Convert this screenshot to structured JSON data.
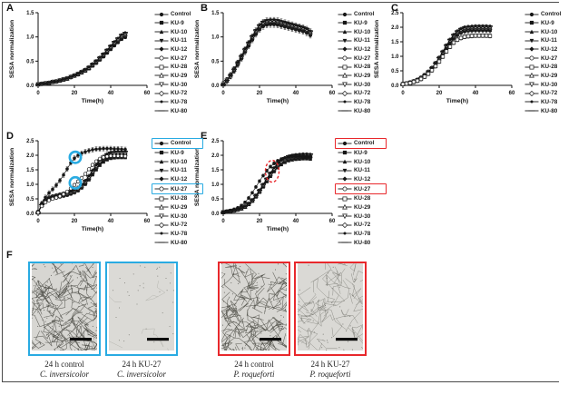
{
  "panel_letters": [
    "A",
    "B",
    "C",
    "D",
    "E",
    "F"
  ],
  "legend_labels": [
    "Control",
    "KU-9",
    "KU-10",
    "KU-11",
    "KU-12",
    "KU-27",
    "KU-28",
    "KU-29",
    "KU-30",
    "KU-72",
    "KU-78",
    "KU-80"
  ],
  "legend_markers": [
    "filled-circle",
    "filled-square",
    "filled-triangle-up",
    "filled-triangle-down",
    "filled-diamond",
    "open-circle",
    "open-square",
    "open-triangle-up",
    "open-triangle-down",
    "open-diamond",
    "filled-small-circle",
    "dash"
  ],
  "colors": {
    "series": "#161616",
    "axis": "#111111",
    "highlight_cyan": "#29abe2",
    "highlight_red": "#e8282c"
  },
  "chart_data": [
    {
      "panel": "A",
      "type": "line",
      "xlabel": "Time(h)",
      "ylabel": "SESA normalization",
      "xlim": [
        0,
        60
      ],
      "ylim": [
        0,
        1.5
      ],
      "xtick_values": [
        0,
        20,
        40,
        60
      ],
      "xtick_labels": [
        "0",
        "20",
        "40",
        "60"
      ],
      "ytick_values": [
        0,
        0.5,
        1.0,
        1.5
      ],
      "ytick_labels": [
        "0.0",
        "0.5",
        "1.0",
        "1.5"
      ],
      "x": [
        0,
        2,
        4,
        6,
        8,
        10,
        12,
        14,
        16,
        18,
        20,
        22,
        24,
        26,
        28,
        30,
        32,
        34,
        36,
        38,
        40,
        42,
        44,
        46,
        48
      ],
      "band_values": [
        0.02,
        0.03,
        0.04,
        0.05,
        0.07,
        0.08,
        0.1,
        0.12,
        0.14,
        0.17,
        0.2,
        0.23,
        0.27,
        0.31,
        0.36,
        0.42,
        0.48,
        0.55,
        0.62,
        0.7,
        0.78,
        0.86,
        0.93,
        1.0,
        1.04
      ],
      "band_spread": 0.05,
      "error_bar": 0.02,
      "series_special": {},
      "annotations": [],
      "legend_boxed": [],
      "legend_box_color": null
    },
    {
      "panel": "B",
      "type": "line",
      "xlabel": "Time(h)",
      "ylabel": "SESA normalization",
      "xlim": [
        0,
        60
      ],
      "ylim": [
        0,
        1.5
      ],
      "xtick_values": [
        0,
        20,
        40,
        60
      ],
      "xtick_labels": [
        "0",
        "20",
        "40",
        "60"
      ],
      "ytick_values": [
        0,
        0.5,
        1.0,
        1.5
      ],
      "ytick_labels": [
        "0.0",
        "0.5",
        "1.0",
        "1.5"
      ],
      "x": [
        0,
        2,
        4,
        6,
        8,
        10,
        12,
        14,
        16,
        18,
        20,
        22,
        24,
        26,
        28,
        30,
        32,
        34,
        36,
        38,
        40,
        42,
        44,
        46,
        48
      ],
      "band_values": [
        0.02,
        0.1,
        0.2,
        0.32,
        0.45,
        0.58,
        0.72,
        0.85,
        0.98,
        1.1,
        1.2,
        1.27,
        1.3,
        1.31,
        1.31,
        1.3,
        1.28,
        1.26,
        1.24,
        1.22,
        1.2,
        1.18,
        1.16,
        1.13,
        1.08
      ],
      "band_spread": 0.04,
      "error_bar": 0.06,
      "series_special": {},
      "annotations": [],
      "legend_boxed": [],
      "legend_box_color": null
    },
    {
      "panel": "C",
      "type": "line",
      "xlabel": "Time(h)",
      "ylabel": "SESA normalization",
      "xlim": [
        0,
        60
      ],
      "ylim": [
        0,
        2.5
      ],
      "xtick_values": [
        0,
        20,
        40,
        60
      ],
      "xtick_labels": [
        "0",
        "20",
        "40",
        "60"
      ],
      "ytick_values": [
        0,
        0.5,
        1.0,
        1.5,
        2.0,
        2.5
      ],
      "ytick_labels": [
        "0.0",
        "0.5",
        "1.0",
        "1.5",
        "2.0",
        "2.5"
      ],
      "x": [
        0,
        2,
        4,
        6,
        8,
        10,
        12,
        14,
        16,
        18,
        20,
        22,
        24,
        26,
        28,
        30,
        32,
        34,
        36,
        38,
        40,
        42,
        44,
        46,
        48
      ],
      "band_values": [
        0.04,
        0.06,
        0.09,
        0.13,
        0.18,
        0.25,
        0.34,
        0.45,
        0.58,
        0.74,
        0.92,
        1.12,
        1.33,
        1.52,
        1.68,
        1.8,
        1.88,
        1.93,
        1.95,
        1.96,
        1.97,
        1.97,
        1.97,
        1.97,
        1.96
      ],
      "band_spread": 0.04,
      "error_bar": 0.07,
      "series_special": {
        "KU-28": [
          0.04,
          0.06,
          0.08,
          0.12,
          0.16,
          0.22,
          0.3,
          0.4,
          0.52,
          0.66,
          0.82,
          0.99,
          1.17,
          1.33,
          1.47,
          1.57,
          1.63,
          1.67,
          1.69,
          1.7,
          1.71,
          1.71,
          1.71,
          1.71,
          1.7
        ]
      },
      "annotations": [],
      "legend_boxed": [],
      "legend_box_color": null
    },
    {
      "panel": "D",
      "type": "line",
      "xlabel": "Time(h)",
      "ylabel": "SESA normalization",
      "xlim": [
        0,
        60
      ],
      "ylim": [
        0,
        2.5
      ],
      "xtick_values": [
        0,
        20,
        40,
        60
      ],
      "xtick_labels": [
        "0",
        "20",
        "40",
        "60"
      ],
      "ytick_values": [
        0,
        0.5,
        1.0,
        1.5,
        2.0,
        2.5
      ],
      "ytick_labels": [
        "0.0",
        "0.5",
        "1.0",
        "1.5",
        "2.0",
        "2.5"
      ],
      "x": [
        0,
        2,
        4,
        6,
        8,
        10,
        12,
        14,
        16,
        18,
        20,
        22,
        24,
        26,
        28,
        30,
        32,
        34,
        36,
        38,
        40,
        42,
        44,
        46,
        48
      ],
      "band_values": [
        0.03,
        0.28,
        0.42,
        0.5,
        0.55,
        0.58,
        0.61,
        0.64,
        0.67,
        0.71,
        0.76,
        0.83,
        0.93,
        1.06,
        1.22,
        1.4,
        1.58,
        1.74,
        1.86,
        1.94,
        1.99,
        2.01,
        2.02,
        2.02,
        2.02
      ],
      "band_spread": 0.06,
      "error_bar": 0.08,
      "series_special": {
        "Control": [
          0.03,
          0.35,
          0.55,
          0.7,
          0.83,
          0.97,
          1.13,
          1.32,
          1.53,
          1.74,
          1.9,
          2.0,
          2.07,
          2.12,
          2.16,
          2.19,
          2.21,
          2.22,
          2.23,
          2.23,
          2.23,
          2.22,
          2.22,
          2.21,
          2.2
        ],
        "KU-27": [
          0.03,
          0.25,
          0.38,
          0.45,
          0.5,
          0.54,
          0.59,
          0.66,
          0.75,
          0.86,
          0.98,
          1.1,
          1.22,
          1.36,
          1.52,
          1.67,
          1.79,
          1.88,
          1.93,
          1.96,
          1.98,
          1.98,
          1.98,
          1.98,
          1.97
        ]
      },
      "annotations": [
        {
          "type": "ring",
          "x": 20.5,
          "y": 1.93,
          "r": 6.2,
          "color": "#29abe2"
        },
        {
          "type": "ring",
          "x": 20.5,
          "y": 1.05,
          "r": 6.2,
          "color": "#29abe2"
        }
      ],
      "legend_boxed": [
        "Control",
        "KU-27"
      ],
      "legend_box_color": "#29abe2"
    },
    {
      "panel": "E",
      "type": "line",
      "xlabel": "Time(h)",
      "ylabel": "SESA normalization",
      "xlim": [
        0,
        60
      ],
      "ylim": [
        0,
        2.5
      ],
      "xtick_values": [
        0,
        20,
        40,
        60
      ],
      "xtick_labels": [
        "0",
        "20",
        "40",
        "60"
      ],
      "ytick_values": [
        0,
        0.5,
        1.0,
        1.5,
        2.0,
        2.5
      ],
      "ytick_labels": [
        "0.0",
        "0.5",
        "1.0",
        "1.5",
        "2.0",
        "2.5"
      ],
      "x": [
        0,
        2,
        4,
        6,
        8,
        10,
        12,
        14,
        16,
        18,
        20,
        22,
        24,
        26,
        28,
        30,
        32,
        34,
        36,
        38,
        40,
        42,
        44,
        46,
        48
      ],
      "band_values": [
        0.04,
        0.06,
        0.08,
        0.1,
        0.13,
        0.17,
        0.23,
        0.32,
        0.44,
        0.59,
        0.76,
        0.95,
        1.14,
        1.33,
        1.5,
        1.64,
        1.75,
        1.83,
        1.89,
        1.92,
        1.94,
        1.95,
        1.96,
        1.96,
        1.95
      ],
      "band_spread": 0.05,
      "error_bar": 0.05,
      "series_special": {
        "Control": [
          0.04,
          0.07,
          0.1,
          0.14,
          0.19,
          0.27,
          0.38,
          0.53,
          0.71,
          0.91,
          1.11,
          1.3,
          1.47,
          1.61,
          1.72,
          1.81,
          1.87,
          1.91,
          1.94,
          1.96,
          1.97,
          1.97,
          1.97,
          1.96,
          1.95
        ]
      },
      "annotations": [
        {
          "type": "dashed-ellipse",
          "x": 27,
          "y": 1.45,
          "rx": 7.5,
          "ry": 12,
          "color": "#e8282c"
        }
      ],
      "legend_boxed": [
        "Control",
        "KU-27"
      ],
      "legend_box_color": "#e8282c"
    }
  ],
  "panel_f": {
    "images": [
      {
        "border_color": "#29abe2",
        "caption_line1": "24 h control",
        "caption_line2": "C. inversicolor",
        "appearance": {
          "bg": "#d7d6d2",
          "curves": 85,
          "dots": 60,
          "stroke": "#45453e",
          "sw": 0.55,
          "op": 0.8,
          "dot_color": "#3a3a34"
        }
      },
      {
        "border_color": "#29abe2",
        "caption_line1": "24 h KU-27",
        "caption_line2": "C. inversicolor",
        "appearance": {
          "bg": "#dbdad6",
          "curves": 5,
          "dots": 34,
          "stroke": "#a7a79f",
          "sw": 0.5,
          "op": 0.7,
          "dot_color": "#66665e"
        }
      },
      {
        "border_color": "#e8282c",
        "caption_line1": "24 h control",
        "caption_line2": "P. roqueforti",
        "appearance": {
          "bg": "#d8d7d3",
          "curves": 80,
          "dots": 55,
          "stroke": "#474740",
          "sw": 0.55,
          "op": 0.8,
          "dot_color": "#3a3a34"
        }
      },
      {
        "border_color": "#e8282c",
        "caption_line1": "24 h KU-27",
        "caption_line2": "P. roqueforti",
        "appearance": {
          "bg": "#dad9d5",
          "curves": 45,
          "dots": 35,
          "stroke": "#72726b",
          "sw": 0.5,
          "op": 0.72,
          "dot_color": "#55554e"
        }
      }
    ],
    "scale_bar": true
  }
}
